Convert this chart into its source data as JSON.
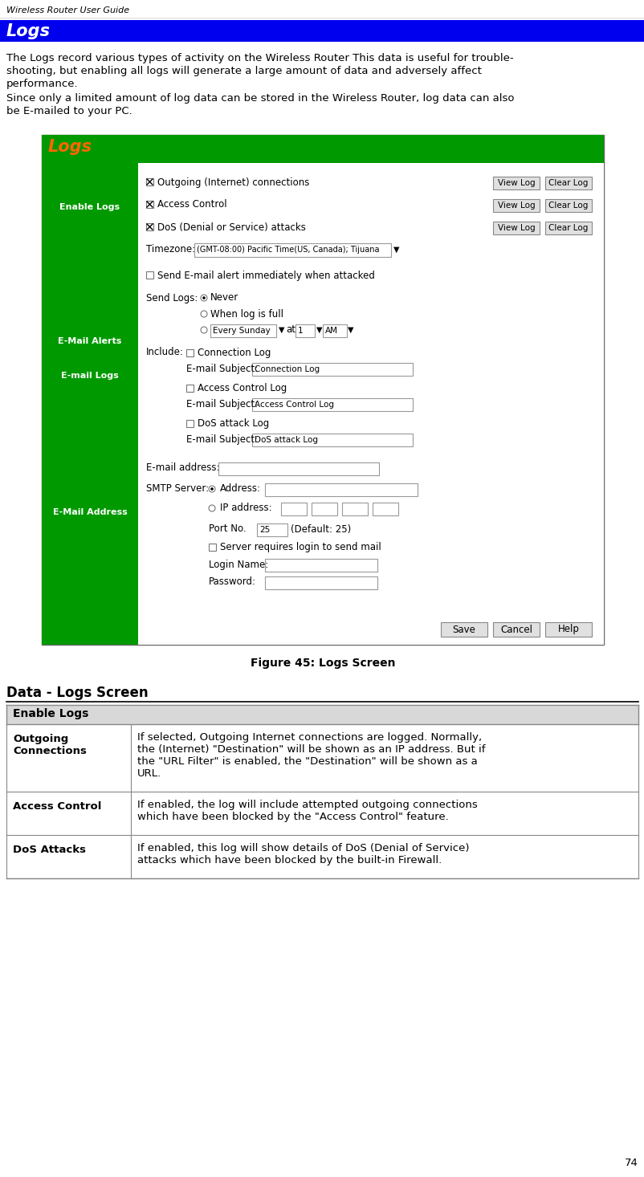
{
  "page_header": "Wireless Router User Guide",
  "section_title": "Logs",
  "section_title_bg": "#0000EE",
  "section_title_color": "#FFFFFF",
  "body_text_1_lines": [
    "The Logs record various types of activity on the Wireless Router This data is useful for trouble-",
    "shooting, but enabling all logs will generate a large amount of data and adversely affect",
    "performance."
  ],
  "body_text_2_lines": [
    "Since only a limited amount of log data can be stored in the Wireless Router, log data can also",
    "be E-mailed to your PC."
  ],
  "figure_caption": "Figure 45: Logs Screen",
  "data_section_title": "Data - Logs Screen",
  "table_header": "Enable Logs",
  "table_rows": [
    {
      "term": "Outgoing\nConnections",
      "definition_lines": [
        "If selected, Outgoing Internet connections are logged. Normally,",
        "the (Internet) \"Destination\" will be shown as an IP address. But if",
        "the \"URL Filter\" is enabled, the \"Destination\" will be shown as a",
        "URL."
      ]
    },
    {
      "term": "Access Control",
      "definition_lines": [
        "If enabled, the log will include attempted outgoing connections",
        "which have been blocked by the \"Access Control\" feature."
      ]
    },
    {
      "term": "DoS Attacks",
      "definition_lines": [
        "If enabled, this log will show details of DoS (Denial of Service)",
        "attacks which have been blocked by the built-in Firewall."
      ]
    }
  ],
  "page_number": "74",
  "sc_green": "#009900",
  "sc_title": "Logs",
  "sc_title_color": "#FF6600",
  "sidebar_label_color": "#FFFFFF"
}
